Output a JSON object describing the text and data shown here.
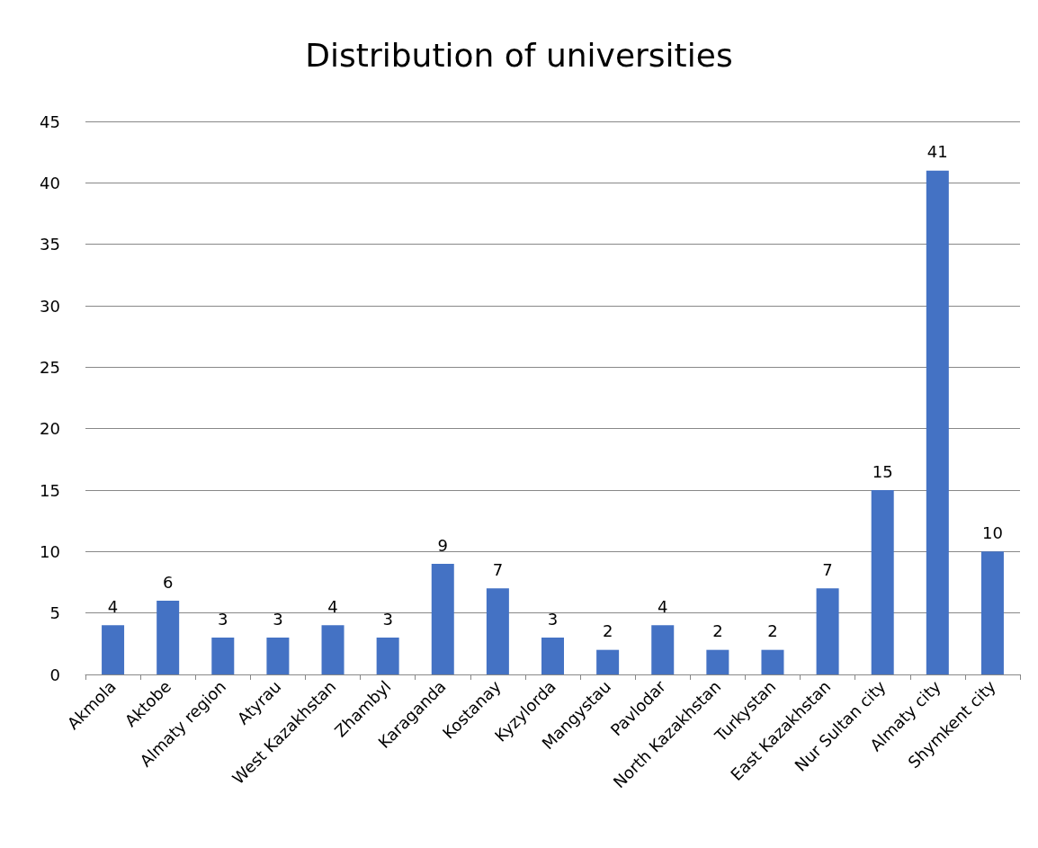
{
  "chart_data": {
    "type": "bar",
    "title": "Distribution of universities",
    "categories": [
      "Akmola",
      "Aktobe",
      "Almaty region",
      "Atyrau",
      "West Kazakhstan",
      "Zhambyl",
      "Karaganda",
      "Kostanay",
      "Kyzylorda",
      "Mangystau",
      "Pavlodar",
      "North Kazakhstan",
      "Turkystan",
      "East Kazakhstan",
      "Nur Sultan city",
      "Almaty city",
      "Shymkent city"
    ],
    "values": [
      4,
      6,
      3,
      3,
      4,
      3,
      9,
      7,
      3,
      2,
      4,
      2,
      2,
      7,
      15,
      41,
      10
    ],
    "color": "#4472c4",
    "ylim": [
      0,
      45
    ],
    "yticks": [
      0,
      5,
      10,
      15,
      20,
      25,
      30,
      35,
      40,
      45
    ],
    "grid": "y",
    "data_labels": true
  }
}
